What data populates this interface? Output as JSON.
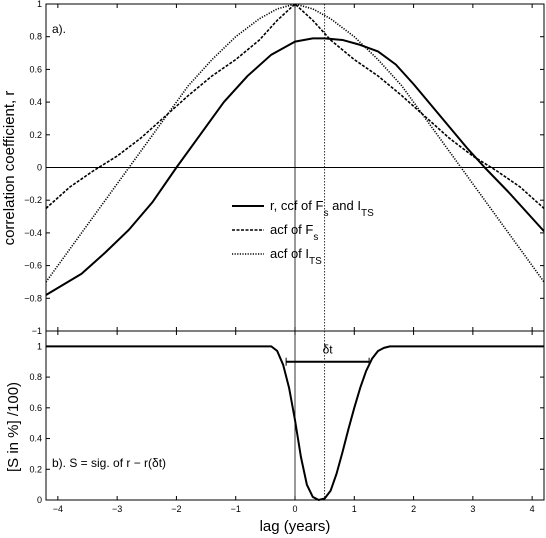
{
  "chart_data": [
    {
      "type": "line",
      "panel_label": "a).",
      "xlabel": "",
      "ylabel": "correlation coefficient, r",
      "xlim": [
        -4.2,
        4.2
      ],
      "ylim": [
        -1,
        1
      ],
      "xticks": [
        -4,
        -3,
        -2,
        -1,
        0,
        1,
        2,
        3,
        4
      ],
      "yticks": [
        -1,
        -0.8,
        -0.6,
        -0.4,
        -0.2,
        0,
        0.2,
        0.4,
        0.6,
        0.8,
        1
      ],
      "grid": false,
      "legend_position": "center",
      "reference_lines": {
        "horizontal": [
          0
        ],
        "vertical_solid": [
          0
        ],
        "vertical_dotted": [
          0.5
        ]
      },
      "series": [
        {
          "name_parts": {
            "prefix": "r, ccf of F",
            "sub1": "s",
            "mid": " and I",
            "sub2": "TS"
          },
          "style": "solid",
          "x": [
            -4.2,
            -3.6,
            -3.2,
            -2.8,
            -2.4,
            -2.0,
            -1.6,
            -1.2,
            -0.8,
            -0.4,
            0.0,
            0.3,
            0.5,
            0.8,
            1.1,
            1.4,
            1.7,
            2.0,
            2.3,
            2.6,
            2.9,
            3.2,
            3.6,
            4.2
          ],
          "y": [
            -0.78,
            -0.65,
            -0.52,
            -0.38,
            -0.21,
            0.0,
            0.2,
            0.4,
            0.56,
            0.69,
            0.77,
            0.79,
            0.79,
            0.78,
            0.75,
            0.71,
            0.63,
            0.51,
            0.38,
            0.25,
            0.12,
            0.0,
            -0.15,
            -0.39
          ]
        },
        {
          "name_parts": {
            "prefix": "acf of F",
            "sub1": "s",
            "mid": "",
            "sub2": ""
          },
          "style": "dashed",
          "x": [
            -4.2,
            -3.8,
            -3.4,
            -3.0,
            -2.6,
            -2.2,
            -1.8,
            -1.4,
            -1.0,
            -0.6,
            -0.3,
            0.0,
            0.3,
            0.6,
            1.0,
            1.4,
            1.8,
            2.2,
            2.6,
            3.0,
            3.4,
            3.8,
            4.2
          ],
          "y": [
            -0.25,
            -0.12,
            -0.02,
            0.07,
            0.18,
            0.31,
            0.44,
            0.56,
            0.66,
            0.78,
            0.9,
            1.0,
            0.9,
            0.78,
            0.66,
            0.56,
            0.44,
            0.31,
            0.18,
            0.07,
            -0.02,
            -0.12,
            -0.25
          ]
        },
        {
          "name_parts": {
            "prefix": "acf of I",
            "sub1": "",
            "mid": "",
            "sub2": "TS"
          },
          "style": "dotted",
          "x": [
            -4.2,
            -3.8,
            -3.4,
            -3.0,
            -2.6,
            -2.2,
            -1.8,
            -1.4,
            -1.0,
            -0.6,
            -0.3,
            0.0,
            0.3,
            0.6,
            1.0,
            1.4,
            1.8,
            2.2,
            2.6,
            3.0,
            3.4,
            3.8,
            4.2
          ],
          "y": [
            -0.7,
            -0.5,
            -0.3,
            -0.1,
            0.1,
            0.3,
            0.5,
            0.66,
            0.8,
            0.91,
            0.97,
            1.0,
            0.97,
            0.91,
            0.8,
            0.66,
            0.5,
            0.3,
            0.1,
            -0.1,
            -0.3,
            -0.5,
            -0.7
          ]
        }
      ]
    },
    {
      "type": "line",
      "panel_label_parts": {
        "prefix": "b). S = sig. of r − r(",
        "delta": "δt",
        "suffix": ")"
      },
      "xlabel": "lag (years)",
      "ylabel": "[S in %] /100)",
      "xlim": [
        -4.2,
        4.2
      ],
      "ylim": [
        0,
        1.1
      ],
      "xticks": [
        -4,
        -3,
        -2,
        -1,
        0,
        1,
        2,
        3,
        4
      ],
      "yticks": [
        0,
        0.2,
        0.4,
        0.6,
        0.8,
        1
      ],
      "grid": false,
      "reference_lines": {
        "vertical_solid": [
          0
        ],
        "vertical_dotted": [
          0.5
        ]
      },
      "annotation": {
        "text": "δt",
        "x_from": -0.15,
        "x_to": 1.25,
        "y": 0.9
      },
      "series": [
        {
          "name": "",
          "style": "solid",
          "x": [
            -4.2,
            -0.4,
            -0.3,
            -0.2,
            -0.1,
            0.0,
            0.1,
            0.2,
            0.3,
            0.4,
            0.5,
            0.6,
            0.7,
            0.8,
            0.9,
            1.0,
            1.1,
            1.2,
            1.3,
            1.4,
            1.5,
            1.6,
            1.7,
            4.2
          ],
          "y": [
            1.0,
            1.0,
            0.97,
            0.88,
            0.73,
            0.52,
            0.28,
            0.1,
            0.02,
            0.0,
            0.01,
            0.06,
            0.17,
            0.31,
            0.46,
            0.6,
            0.73,
            0.84,
            0.92,
            0.97,
            0.99,
            1.0,
            1.0,
            1.0
          ]
        }
      ]
    }
  ]
}
